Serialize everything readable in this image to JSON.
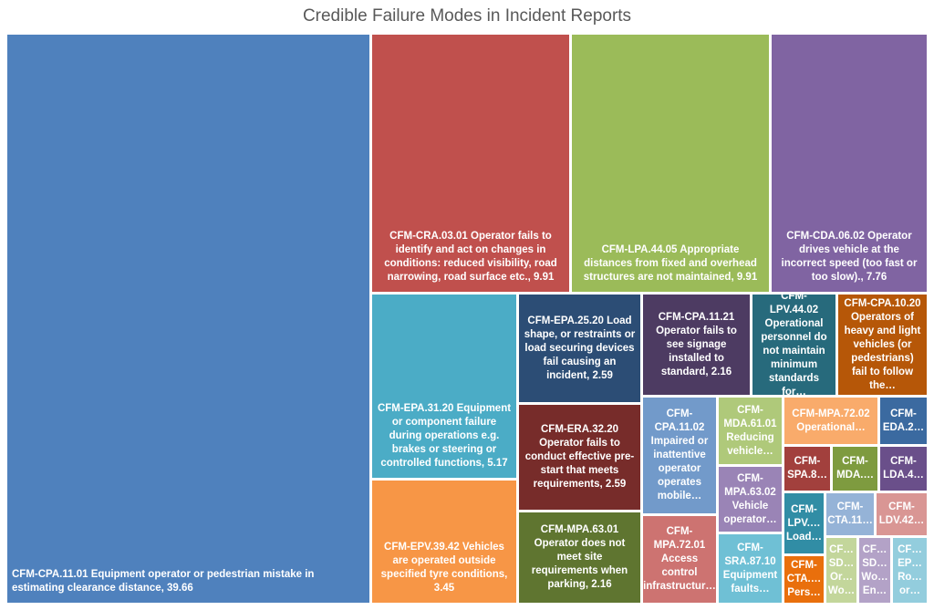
{
  "chart_data": {
    "type": "treemap",
    "title": "Credible Failure Modes in Incident Reports",
    "items": [
      {
        "label": "CFM-CPA.11.01 Equipment operator or pedestrian mistake in estimating clearance distance, 39.66",
        "value": 39.66,
        "color": "#4f81bd"
      },
      {
        "label": "CFM-CRA.03.01 Operator fails to identify and act on changes in conditions: reduced visibility, road narrowing, road surface etc., 9.91",
        "value": 9.91,
        "color": "#c0504d"
      },
      {
        "label": "CFM-LPA.44.05 Appropriate distances from fixed and overhead structures are not maintained, 9.91",
        "value": 9.91,
        "color": "#9bbb59"
      },
      {
        "label": "CFM-CDA.06.02 Operator drives vehicle at the incorrect speed (too fast or too slow)., 7.76",
        "value": 7.76,
        "color": "#8064a2"
      },
      {
        "label": "CFM-EPA.31.20 Equipment or component failure during operations e.g. brakes or steering or controlled functions, 5.17",
        "value": 5.17,
        "color": "#4bacc6"
      },
      {
        "label": "CFM-EPV.39.42 Vehicles are operated outside specified tyre conditions, 3.45",
        "value": 3.45,
        "color": "#f79646"
      },
      {
        "label": "CFM-EPA.25.20 Load shape, or restraints or load securing devices fail causing an incident, 2.59",
        "value": 2.59,
        "color": "#2c4d75"
      },
      {
        "label": "CFM-ERA.32.20 Operator fails to conduct effective pre-start that meets requirements, 2.59",
        "value": 2.59,
        "color": "#772c2a"
      },
      {
        "label": "CFM-MPA.63.01 Operator does not meet site requirements when parking, 2.16",
        "value": 2.16,
        "color": "#5f7530"
      },
      {
        "label": "CFM-CPA.11.21 Operator fails to see signage installed to standard, 2.16",
        "value": 2.16,
        "color": "#4d3b62"
      },
      {
        "label": "CFM-LPV.44.02 Operational personnel do not maintain minimum standards for…",
        "value": null,
        "color": "#276a7c"
      },
      {
        "label": "CFM-CPA.10.20 Operators of heavy and light vehicles (or pedestrians) fail to follow the…",
        "value": null,
        "color": "#b65708"
      },
      {
        "label": "CFM-\nCPA.11.02 Impaired or inattentive operator operates mobile…",
        "value": null,
        "color": "#729aca"
      },
      {
        "label": "CFM-\nMPA.72.01 Access control infrastructur…",
        "value": null,
        "color": "#cd7371"
      },
      {
        "label": "CFM-\nMDA.61.01 Reducing vehicle…",
        "value": null,
        "color": "#afc97a"
      },
      {
        "label": "CFM-\nMPA.63.02 Vehicle operator…",
        "value": null,
        "color": "#9a84b6"
      },
      {
        "label": "CFM-\nSRA.87.10 Equipment faults…",
        "value": null,
        "color": "#6fc0d5"
      },
      {
        "label": "CFM-MPA.72.02 Operational…",
        "value": null,
        "color": "#f9ab6b"
      },
      {
        "label": "CFM-\nEDA.2…",
        "value": null,
        "color": "#3b6aa0"
      },
      {
        "label": "CFM-\nSPA.8…",
        "value": null,
        "color": "#a2403d"
      },
      {
        "label": "CFM-\nMDA.…",
        "value": null,
        "color": "#7e9b3f"
      },
      {
        "label": "CFM-\nLDA.4…",
        "value": null,
        "color": "#6a4f8a"
      },
      {
        "label": "CFM-\nLPV.…\nLoad…",
        "value": null,
        "color": "#318da5"
      },
      {
        "label": "CFM-\nCTA.11…",
        "value": null,
        "color": "#95b3d7"
      },
      {
        "label": "CFM-\nLDV.42…",
        "value": null,
        "color": "#d99694"
      },
      {
        "label": "CFM-\nCTA.…\nPers…",
        "value": null,
        "color": "#e96f0c"
      },
      {
        "label": "CF…\nSD…\nOr…\nWo…",
        "value": null,
        "color": "#c3d69b"
      },
      {
        "label": "CF…\nSD…\nWo…\nEn…",
        "value": null,
        "color": "#b3a2c7"
      },
      {
        "label": "CF…\nEP…\nRo…\nor…",
        "value": null,
        "color": "#93cddd"
      }
    ]
  }
}
